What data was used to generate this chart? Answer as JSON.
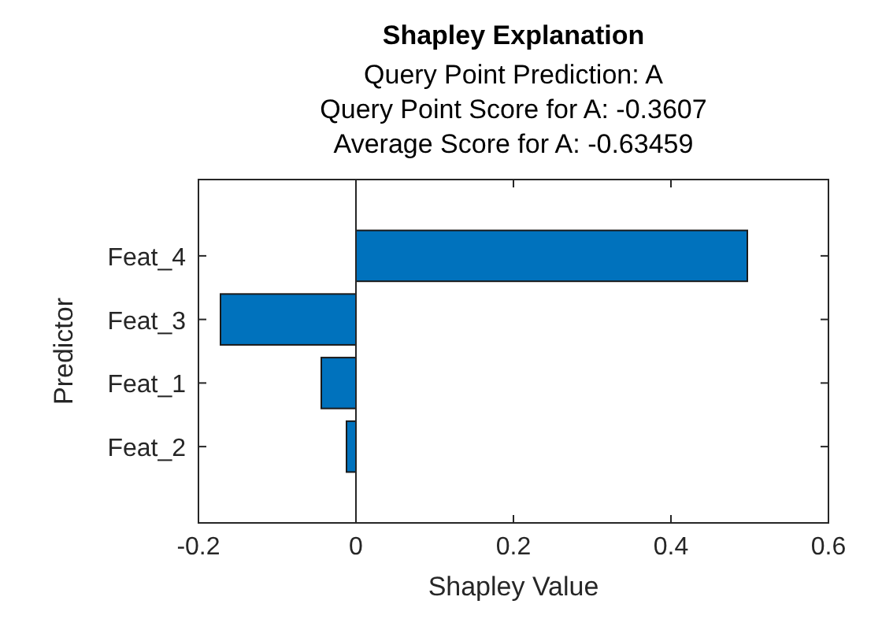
{
  "chart_data": {
    "type": "bar",
    "orientation": "horizontal",
    "title": "Shapley Explanation",
    "subtitle": [
      "Query Point Prediction: A",
      "Query Point Score for A: -0.3607",
      "Average Score for A: -0.63459"
    ],
    "xlabel": "Shapley Value",
    "ylabel": "Predictor",
    "categories": [
      "Feat_4",
      "Feat_3",
      "Feat_1",
      "Feat_2"
    ],
    "values": [
      0.497,
      -0.172,
      -0.044,
      -0.012
    ],
    "color": "#0072bd",
    "xlim": [
      -0.2,
      0.6
    ],
    "xticks": [
      -0.2,
      0,
      0.2,
      0.4,
      0.6
    ],
    "ref_lines": [
      {
        "axis": "x",
        "value": 0,
        "color": "#262626"
      }
    ]
  }
}
